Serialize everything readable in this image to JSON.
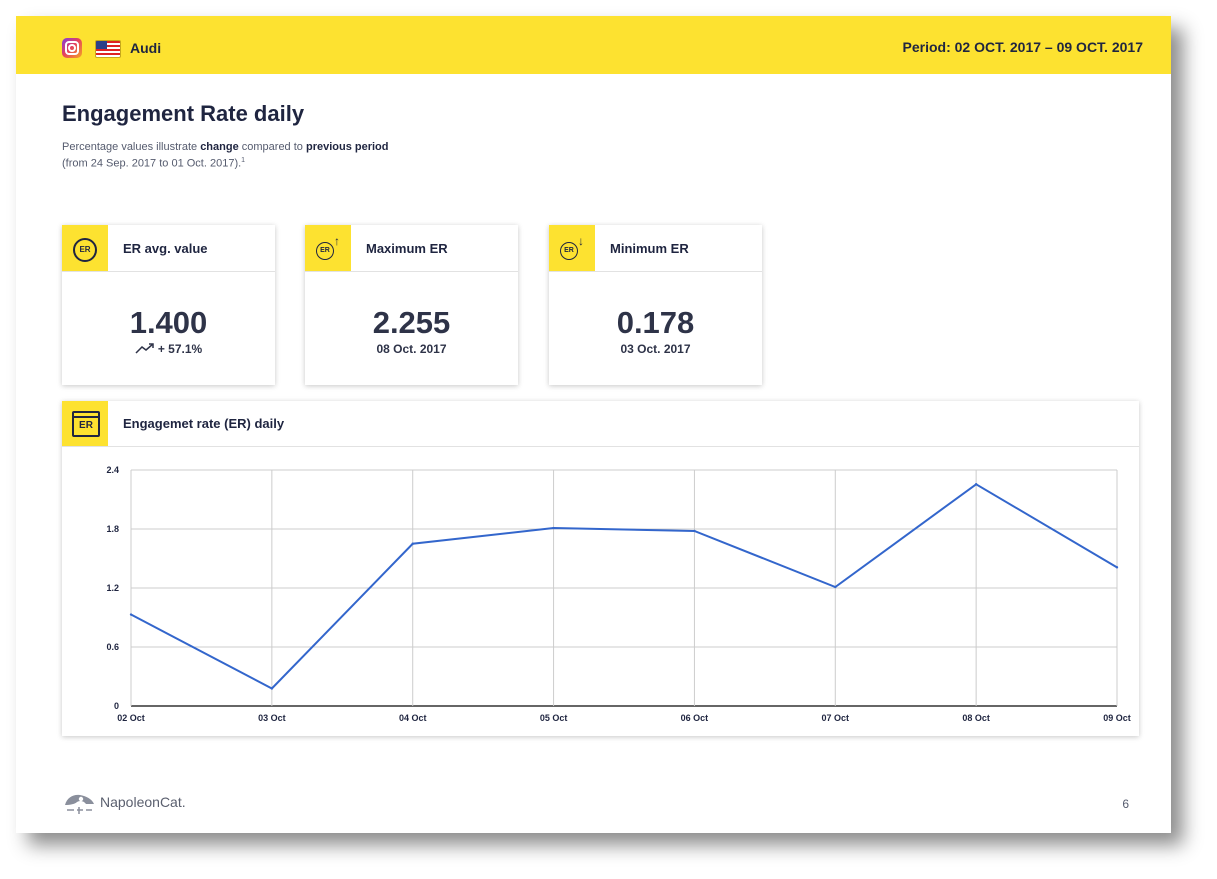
{
  "header": {
    "brand": "Audi",
    "period": "Period: 02 OCT. 2017 – 09 OCT. 2017",
    "icons": [
      "instagram-icon",
      "us-flag-icon"
    ],
    "accent_color": "#fde230"
  },
  "page": {
    "title": "Engagement Rate daily",
    "subtitle": {
      "part1": "Percentage values illustrate ",
      "bold1": "change",
      "part2": " compared to ",
      "bold2": "previous period",
      "line2": "(from 24 Sep. 2017 to 01 Oct. 2017).",
      "footnote_mark": "1"
    },
    "page_number": "6"
  },
  "cards": {
    "avg": {
      "label": "ER avg. value",
      "value": "1.400",
      "change": "+ 57.1%",
      "icon": "er-badge-icon",
      "badge": "ER"
    },
    "max": {
      "label": "Maximum ER",
      "value": "2.255",
      "date": "08 Oct. 2017",
      "icon": "er-up-icon",
      "badge": "ER",
      "arrow": "↑"
    },
    "min": {
      "label": "Minimum ER",
      "value": "0.178",
      "date": "03 Oct. 2017",
      "icon": "er-down-icon",
      "badge": "ER",
      "arrow": "↓"
    }
  },
  "chart_panel": {
    "title": "Engagemet rate (ER) daily",
    "icon": "calendar-er-icon",
    "icon_text": "ER"
  },
  "chart_data": {
    "type": "line",
    "title": "Engagemet rate (ER) daily",
    "categories": [
      "02 Oct",
      "03 Oct",
      "04 Oct",
      "05 Oct",
      "06 Oct",
      "07 Oct",
      "08 Oct",
      "09 Oct"
    ],
    "series": [
      {
        "values": [
          0.93,
          0.178,
          1.65,
          1.81,
          1.78,
          1.21,
          2.255,
          1.41
        ],
        "color": "#3366cc"
      }
    ],
    "yticks": [
      0,
      0.6,
      1.2,
      1.8,
      2.4
    ],
    "ytick_labels": [
      "0",
      "0.6",
      "1.2",
      "1.8",
      "2.4"
    ],
    "ylim": [
      0,
      2.4
    ],
    "grid": true,
    "legend": "none",
    "xlabel": "",
    "ylabel": ""
  },
  "footer": {
    "logo_text": "NapoleonCat.",
    "logo_icon": "napoleoncat-logo-icon"
  }
}
